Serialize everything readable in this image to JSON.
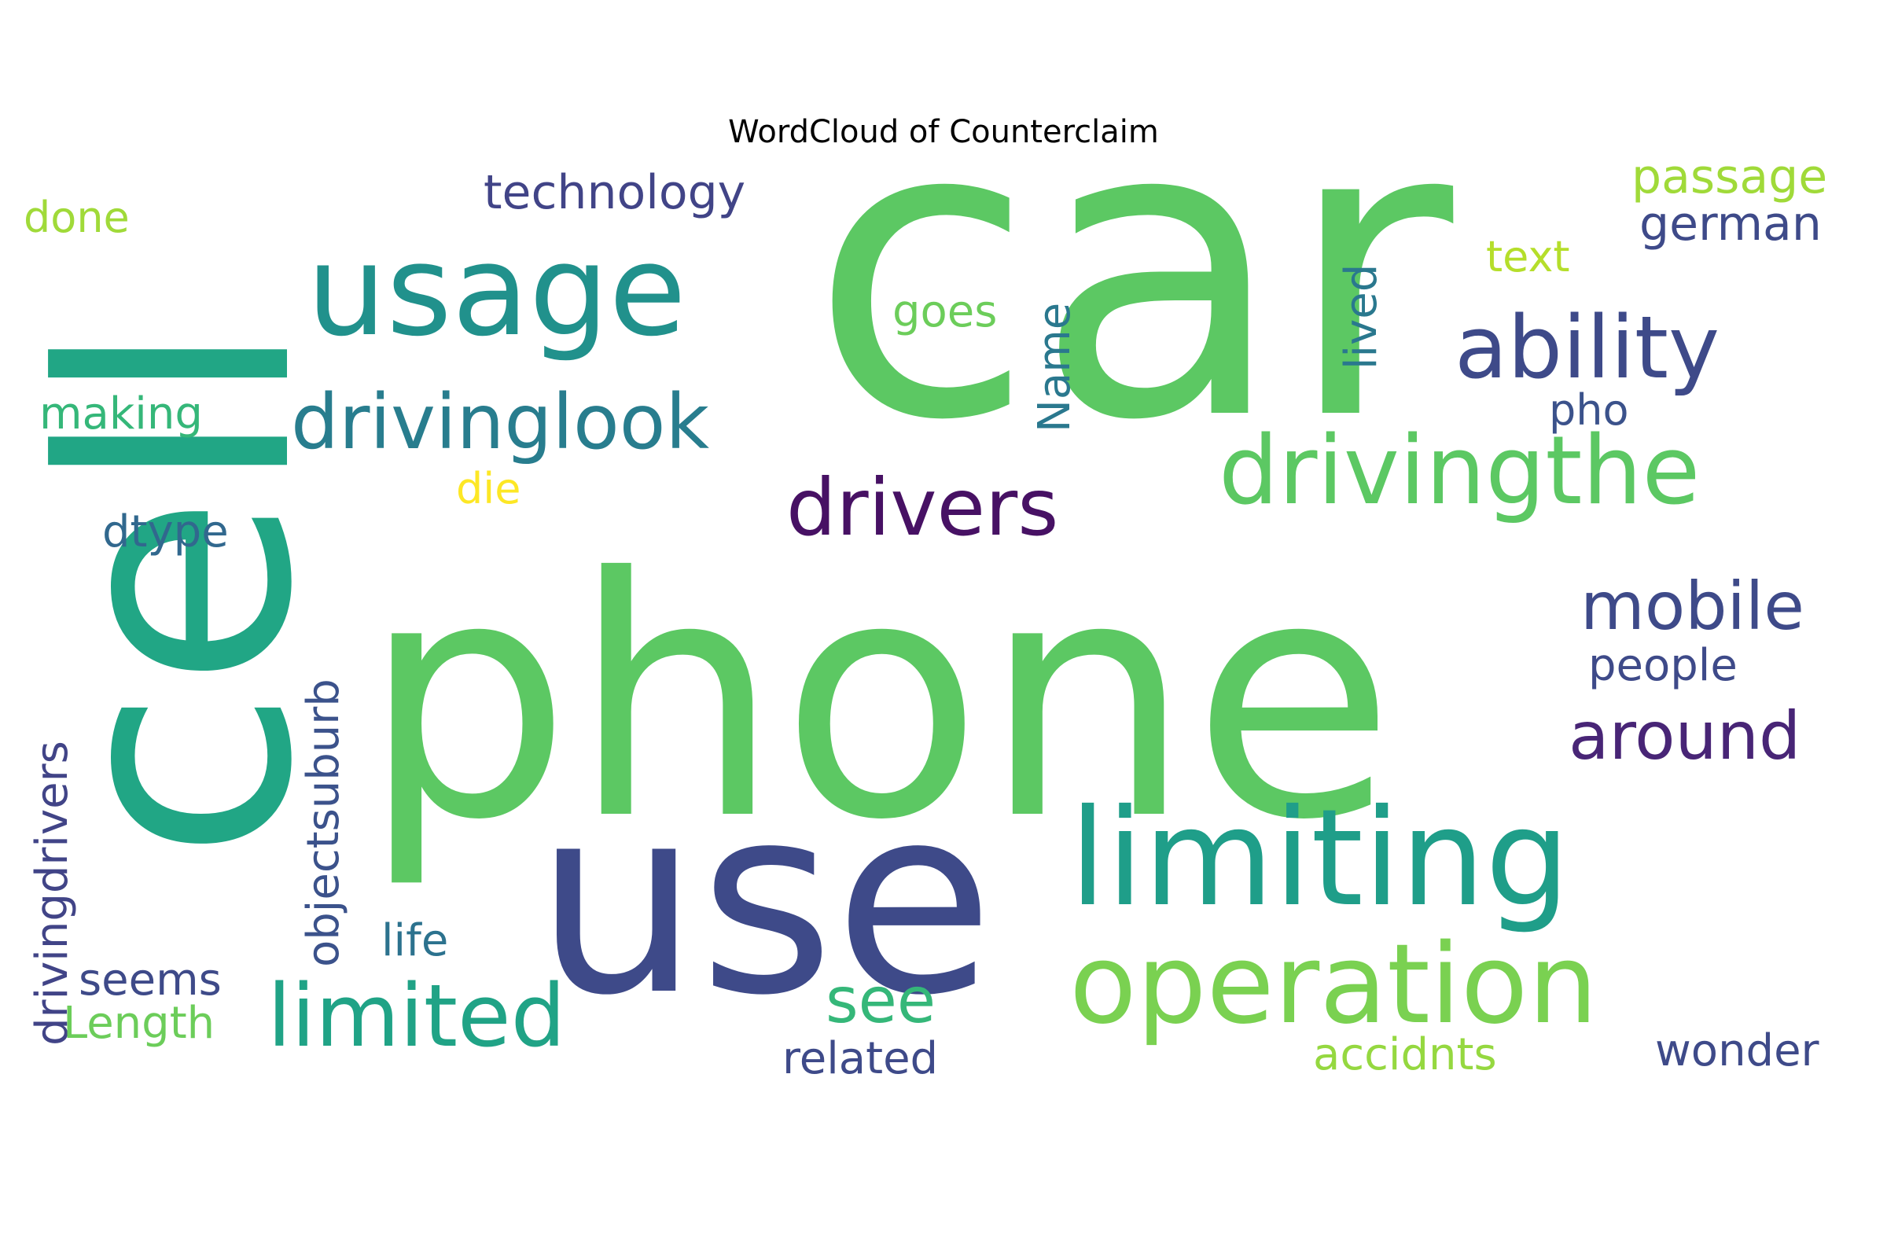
{
  "title": "WordCloud of Counterclaim",
  "words": [
    {
      "text": "car",
      "color": "#5cc863"
    },
    {
      "text": "phone",
      "color": "#5cc863"
    },
    {
      "text": "cell",
      "color": "#21a685"
    },
    {
      "text": "use",
      "color": "#3e4a89"
    },
    {
      "text": "usage",
      "color": "#21918c"
    },
    {
      "text": "limiting",
      "color": "#1f9e89"
    },
    {
      "text": "operation",
      "color": "#7ad151"
    },
    {
      "text": "drivingthe",
      "color": "#5cc863"
    },
    {
      "text": "ability",
      "color": "#3e4a89"
    },
    {
      "text": "drivers",
      "color": "#471164"
    },
    {
      "text": "drivinglook",
      "color": "#287d8e"
    },
    {
      "text": "limited",
      "color": "#20a386"
    },
    {
      "text": "mobile",
      "color": "#3e4a89"
    },
    {
      "text": "around",
      "color": "#482576"
    },
    {
      "text": "technology",
      "color": "#414487"
    },
    {
      "text": "passage",
      "color": "#a0da39"
    },
    {
      "text": "german",
      "color": "#3e4a89"
    },
    {
      "text": "text",
      "color": "#b5de2b"
    },
    {
      "text": "done",
      "color": "#a0da39"
    },
    {
      "text": "goes",
      "color": "#6ccd5a"
    },
    {
      "text": "lived",
      "color": "#2a788e"
    },
    {
      "text": "Name",
      "color": "#2a788e"
    },
    {
      "text": "pho",
      "color": "#3b528b"
    },
    {
      "text": "making",
      "color": "#35b779"
    },
    {
      "text": "die",
      "color": "#fde725"
    },
    {
      "text": "dtype",
      "color": "#31688e"
    },
    {
      "text": "drivingdrivers",
      "color": "#414487"
    },
    {
      "text": "objectsuburb",
      "color": "#3b528b"
    },
    {
      "text": "people",
      "color": "#3e4a89"
    },
    {
      "text": "see",
      "color": "#35b779"
    },
    {
      "text": "life",
      "color": "#2c728e"
    },
    {
      "text": "seems",
      "color": "#3e4a89"
    },
    {
      "text": "Length",
      "color": "#6ccd5a"
    },
    {
      "text": "related",
      "color": "#3e4a89"
    },
    {
      "text": "accidnts",
      "color": "#95d840"
    },
    {
      "text": "wonder",
      "color": "#3e4a89"
    }
  ]
}
